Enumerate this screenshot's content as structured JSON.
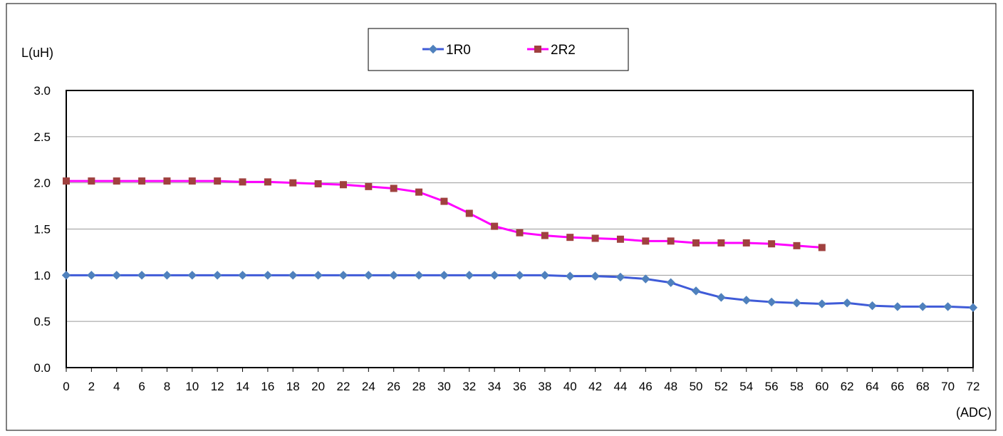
{
  "chart_data": {
    "type": "line",
    "ylabel": "L(uH)",
    "xlabel": "(ADC)",
    "ylim": [
      0,
      3
    ],
    "yticks": [
      "0.0",
      "0.5",
      "1.0",
      "1.5",
      "2.0",
      "2.5",
      "3.0"
    ],
    "ytick_values": [
      0,
      0.5,
      1,
      1.5,
      2,
      2.5,
      3
    ],
    "x": [
      0,
      2,
      4,
      6,
      8,
      10,
      12,
      14,
      16,
      18,
      20,
      22,
      24,
      26,
      28,
      30,
      32,
      34,
      36,
      38,
      40,
      42,
      44,
      46,
      48,
      50,
      52,
      54,
      56,
      58,
      60,
      62,
      64,
      66,
      68,
      70,
      72
    ],
    "xticks": [
      "0",
      "2",
      "4",
      "6",
      "8",
      "10",
      "12",
      "14",
      "16",
      "18",
      "20",
      "22",
      "24",
      "26",
      "28",
      "30",
      "32",
      "34",
      "36",
      "38",
      "40",
      "42",
      "44",
      "46",
      "48",
      "50",
      "52",
      "54",
      "56",
      "58",
      "60",
      "62",
      "64",
      "66",
      "68",
      "70",
      "72"
    ],
    "grid": true,
    "legend_position": "top-center",
    "series": [
      {
        "name": "1R0",
        "color": "#3f5bd8",
        "marker_color": "#4f81bd",
        "marker": "diamond",
        "x": [
          0,
          2,
          4,
          6,
          8,
          10,
          12,
          14,
          16,
          18,
          20,
          22,
          24,
          26,
          28,
          30,
          32,
          34,
          36,
          38,
          40,
          42,
          44,
          46,
          48,
          50,
          52,
          54,
          56,
          58,
          60,
          62,
          64,
          66,
          68,
          70,
          72
        ],
        "values": [
          1.0,
          1.0,
          1.0,
          1.0,
          1.0,
          1.0,
          1.0,
          1.0,
          1.0,
          1.0,
          1.0,
          1.0,
          1.0,
          1.0,
          1.0,
          1.0,
          1.0,
          1.0,
          1.0,
          1.0,
          0.99,
          0.99,
          0.98,
          0.96,
          0.92,
          0.83,
          0.76,
          0.73,
          0.71,
          0.7,
          0.69,
          0.7,
          0.67,
          0.66,
          0.66,
          0.66,
          0.65
        ]
      },
      {
        "name": "2R2",
        "color": "#ff00ff",
        "marker_color": "#a0413f",
        "marker": "square",
        "x": [
          0,
          2,
          4,
          6,
          8,
          10,
          12,
          14,
          16,
          18,
          20,
          22,
          24,
          26,
          28,
          30,
          32,
          34,
          36,
          38,
          40,
          42,
          44,
          46,
          48,
          50,
          52,
          54,
          56,
          58,
          60
        ],
        "values": [
          2.02,
          2.02,
          2.02,
          2.02,
          2.02,
          2.02,
          2.02,
          2.01,
          2.01,
          2.0,
          1.99,
          1.98,
          1.96,
          1.94,
          1.9,
          1.8,
          1.67,
          1.53,
          1.46,
          1.43,
          1.41,
          1.4,
          1.39,
          1.37,
          1.37,
          1.35,
          1.35,
          1.35,
          1.34,
          1.32,
          1.3
        ]
      }
    ]
  }
}
